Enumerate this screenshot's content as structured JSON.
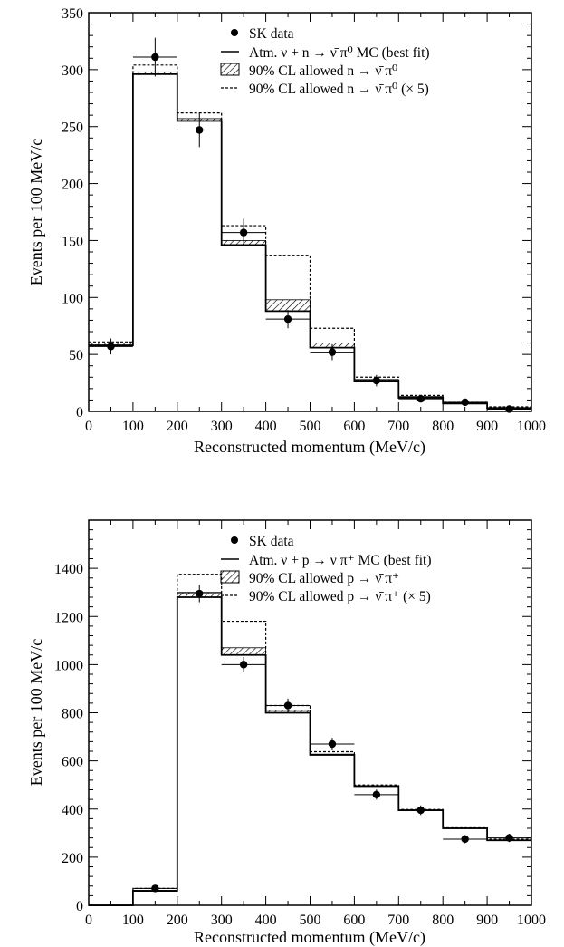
{
  "chart_data": [
    {
      "type": "histogram",
      "xlabel": "Reconstructed momentum (MeV/c)",
      "ylabel": "Events per 100 MeV/c",
      "xlim": [
        0,
        1000
      ],
      "ylim": [
        0,
        350
      ],
      "xticks": [
        0,
        100,
        200,
        300,
        400,
        500,
        600,
        700,
        800,
        900,
        1000
      ],
      "yticks": [
        0,
        50,
        100,
        150,
        200,
        250,
        300,
        350
      ],
      "xtick_labels": [
        "0",
        "100",
        "200",
        "300",
        "400",
        "500",
        "600",
        "700",
        "800",
        "900",
        "1000"
      ],
      "ytick_labels": [
        "0",
        "50",
        "100",
        "150",
        "200",
        "250",
        "300",
        "350"
      ],
      "bin_edges": [
        0,
        100,
        200,
        300,
        400,
        500,
        600,
        700,
        800,
        900,
        1000
      ],
      "legend_position": "top-right",
      "legend": {
        "data": "SK data",
        "mc_best": "Atm. ν + n → ν̄ π⁰ MC (best fit)",
        "cl90": "90% CL allowed n → ν̄ π⁰",
        "cl90x5": "90% CL allowed n → ν̄ π⁰ (× 5)"
      },
      "series": [
        {
          "name": "SK data",
          "style": "points",
          "x": [
            50,
            150,
            250,
            350,
            450,
            550,
            650,
            750,
            850,
            950
          ],
          "y": [
            57,
            311,
            247,
            157,
            81,
            52,
            27,
            11,
            8,
            2
          ],
          "yerr": [
            7,
            17,
            15,
            12,
            8,
            7,
            5,
            3,
            3,
            1
          ]
        },
        {
          "name": "Atm. ν + n → ν̄ π⁰ MC (best fit)",
          "style": "step",
          "values": [
            58,
            296,
            255,
            146,
            88,
            56,
            27,
            12,
            7,
            3
          ]
        },
        {
          "name": "90% CL allowed n → ν̄ π⁰",
          "style": "hatched-band",
          "values": [
            60,
            298,
            257,
            150,
            98,
            60,
            28,
            13,
            7,
            3
          ]
        },
        {
          "name": "90% CL allowed n → ν̄ π⁰ (× 5)",
          "style": "dashed-step",
          "values": [
            61,
            304,
            262,
            163,
            137,
            73,
            30,
            14,
            8,
            4
          ]
        }
      ]
    },
    {
      "type": "histogram",
      "xlabel": "Reconstructed momentum (MeV/c)",
      "ylabel": "Events per 100 MeV/c",
      "xlim": [
        0,
        1000
      ],
      "ylim": [
        0,
        1600
      ],
      "xticks": [
        0,
        100,
        200,
        300,
        400,
        500,
        600,
        700,
        800,
        900,
        1000
      ],
      "yticks": [
        0,
        200,
        400,
        600,
        800,
        1000,
        1200,
        1400
      ],
      "xtick_labels": [
        "0",
        "100",
        "200",
        "300",
        "400",
        "500",
        "600",
        "700",
        "800",
        "900",
        "1000"
      ],
      "ytick_labels": [
        "0",
        "200",
        "400",
        "600",
        "800",
        "1000",
        "1200",
        "1400"
      ],
      "bin_edges": [
        0,
        100,
        200,
        300,
        400,
        500,
        600,
        700,
        800,
        900,
        1000
      ],
      "legend_position": "top-right",
      "legend": {
        "data": "SK data",
        "mc_best": "Atm. ν + p → ν̄ π⁺ MC (best fit)",
        "cl90": "90% CL allowed p → ν̄ π⁺",
        "cl90x5": "90% CL allowed p → ν̄ π⁺ (× 5)"
      },
      "series": [
        {
          "name": "SK data",
          "style": "points",
          "x": [
            150,
            250,
            350,
            450,
            550,
            650,
            750,
            850,
            950
          ],
          "y": [
            70,
            1295,
            1000,
            830,
            670,
            460,
            395,
            275,
            280
          ],
          "yerr": [
            10,
            36,
            32,
            29,
            26,
            21,
            20,
            17,
            17
          ]
        },
        {
          "name": "Atm. ν + p → ν̄ π⁺ MC (best fit)",
          "style": "step",
          "values": [
            0,
            60,
            1280,
            1040,
            800,
            625,
            495,
            395,
            320,
            270
          ]
        },
        {
          "name": "90% CL allowed p → ν̄ π⁺",
          "style": "hatched-band",
          "values": [
            0,
            62,
            1300,
            1070,
            810,
            628,
            497,
            396,
            321,
            271
          ]
        },
        {
          "name": "90% CL allowed p → ν̄ π⁺ (× 5)",
          "style": "dashed-step",
          "values": [
            0,
            70,
            1375,
            1180,
            830,
            638,
            500,
            398,
            322,
            275
          ]
        }
      ]
    }
  ]
}
